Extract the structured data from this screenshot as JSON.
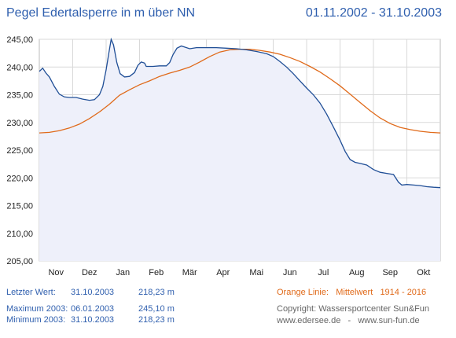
{
  "header": {
    "title": "Pegel Edertalsperre in m über NN",
    "period": "01.11.2002 - 31.10.2003"
  },
  "info": {
    "last_label": "Letzter Wert:",
    "last_date": "31.10.2003",
    "last_value": "218,23 m",
    "max_label": "Maximum 2003:",
    "max_date": "06.01.2003",
    "max_value": "245,10 m",
    "min_label": "Minimum  2003:",
    "min_date": "31.10.2003",
    "min_value": "218,23 m",
    "legend_orange": "Orange Linie:   Mittelwert   1914 - 2016",
    "copyright": "Copyright: Wassersportcenter Sun&Fun",
    "websites": "www.edersee.de   -   www.sun-fun.de"
  },
  "colors": {
    "level_line": "#1f4e96",
    "level_fill": "#eef0fa",
    "mean_line": "#e06a1a",
    "grid": "#d9d9d9",
    "text_blue": "#2f5fae"
  },
  "chart_data": {
    "type": "line",
    "title": "Pegel Edertalsperre in m über NN",
    "xlabel": "",
    "ylabel": "",
    "xlim": [
      0,
      12
    ],
    "ylim": [
      205,
      245
    ],
    "yticks": [
      205,
      210,
      215,
      220,
      225,
      230,
      235,
      240,
      245
    ],
    "ytick_labels": [
      "205,00",
      "210,00",
      "215,00",
      "220,00",
      "225,00",
      "230,00",
      "235,00",
      "240,00",
      "245,00"
    ],
    "month_labels": [
      "Nov",
      "Dez",
      "Jan",
      "Feb",
      "Mär",
      "Apr",
      "Mai",
      "Jun",
      "Jul",
      "Aug",
      "Sep",
      "Okt"
    ],
    "grid": true,
    "series": [
      {
        "points": [
          [
            0,
            239.2
          ],
          [
            0.1,
            239.8
          ],
          [
            0.2,
            238.9
          ],
          [
            0.3,
            238.2
          ],
          [
            0.45,
            236.5
          ],
          [
            0.6,
            235.1
          ],
          [
            0.75,
            234.6
          ],
          [
            0.9,
            234.5
          ],
          [
            1.1,
            234.5
          ],
          [
            1.3,
            234.2
          ],
          [
            1.5,
            234.0
          ],
          [
            1.65,
            234.1
          ],
          [
            1.8,
            235.0
          ],
          [
            1.9,
            236.5
          ],
          [
            2.0,
            239.5
          ],
          [
            2.08,
            242.5
          ],
          [
            2.15,
            245.0
          ],
          [
            2.22,
            244.0
          ],
          [
            2.32,
            240.8
          ],
          [
            2.42,
            238.8
          ],
          [
            2.55,
            238.2
          ],
          [
            2.7,
            238.3
          ],
          [
            2.85,
            239.0
          ],
          [
            2.95,
            240.3
          ],
          [
            3.05,
            240.9
          ],
          [
            3.15,
            240.7
          ],
          [
            3.2,
            240.1
          ],
          [
            3.4,
            240.1
          ],
          [
            3.6,
            240.2
          ],
          [
            3.8,
            240.2
          ],
          [
            3.9,
            240.8
          ],
          [
            4.0,
            242.2
          ],
          [
            4.12,
            243.4
          ],
          [
            4.25,
            243.8
          ],
          [
            4.35,
            243.6
          ],
          [
            4.5,
            243.3
          ],
          [
            4.7,
            243.5
          ],
          [
            5.0,
            243.5
          ],
          [
            5.3,
            243.5
          ],
          [
            5.6,
            243.4
          ],
          [
            5.9,
            243.3
          ],
          [
            6.2,
            243.1
          ],
          [
            6.5,
            242.8
          ],
          [
            6.8,
            242.4
          ],
          [
            7.0,
            241.9
          ],
          [
            7.2,
            241.0
          ],
          [
            7.4,
            240.0
          ],
          [
            7.6,
            238.8
          ],
          [
            7.8,
            237.5
          ],
          [
            8.0,
            236.2
          ],
          [
            8.2,
            235.0
          ],
          [
            8.4,
            233.5
          ],
          [
            8.6,
            231.5
          ],
          [
            8.8,
            229.2
          ],
          [
            9.0,
            226.8
          ],
          [
            9.15,
            224.8
          ],
          [
            9.3,
            223.3
          ],
          [
            9.45,
            222.8
          ],
          [
            9.6,
            222.6
          ],
          [
            9.8,
            222.3
          ],
          [
            10.0,
            221.5
          ],
          [
            10.2,
            221.0
          ],
          [
            10.4,
            220.8
          ],
          [
            10.6,
            220.6
          ],
          [
            10.75,
            219.2
          ],
          [
            10.85,
            218.7
          ],
          [
            11.0,
            218.8
          ],
          [
            11.2,
            218.7
          ],
          [
            11.4,
            218.6
          ],
          [
            11.6,
            218.4
          ],
          [
            11.8,
            218.3
          ],
          [
            12.0,
            218.23
          ]
        ]
      },
      {
        "points": [
          [
            0,
            228.1
          ],
          [
            0.3,
            228.2
          ],
          [
            0.6,
            228.5
          ],
          [
            0.9,
            229.0
          ],
          [
            1.2,
            229.7
          ],
          [
            1.5,
            230.7
          ],
          [
            1.8,
            231.9
          ],
          [
            2.1,
            233.3
          ],
          [
            2.4,
            234.9
          ],
          [
            2.7,
            235.9
          ],
          [
            3.0,
            236.8
          ],
          [
            3.3,
            237.5
          ],
          [
            3.6,
            238.3
          ],
          [
            3.9,
            238.9
          ],
          [
            4.2,
            239.4
          ],
          [
            4.5,
            240.0
          ],
          [
            4.8,
            240.9
          ],
          [
            5.1,
            241.9
          ],
          [
            5.4,
            242.7
          ],
          [
            5.7,
            243.1
          ],
          [
            6.0,
            243.2
          ],
          [
            6.3,
            243.2
          ],
          [
            6.6,
            243.0
          ],
          [
            6.9,
            242.7
          ],
          [
            7.2,
            242.3
          ],
          [
            7.5,
            241.7
          ],
          [
            7.8,
            241.0
          ],
          [
            8.1,
            240.1
          ],
          [
            8.4,
            239.1
          ],
          [
            8.7,
            237.9
          ],
          [
            9.0,
            236.6
          ],
          [
            9.3,
            235.1
          ],
          [
            9.6,
            233.6
          ],
          [
            9.9,
            232.1
          ],
          [
            10.2,
            230.8
          ],
          [
            10.5,
            229.8
          ],
          [
            10.8,
            229.1
          ],
          [
            11.1,
            228.7
          ],
          [
            11.4,
            228.4
          ],
          [
            11.7,
            228.2
          ],
          [
            12.0,
            228.1
          ]
        ]
      }
    ]
  }
}
